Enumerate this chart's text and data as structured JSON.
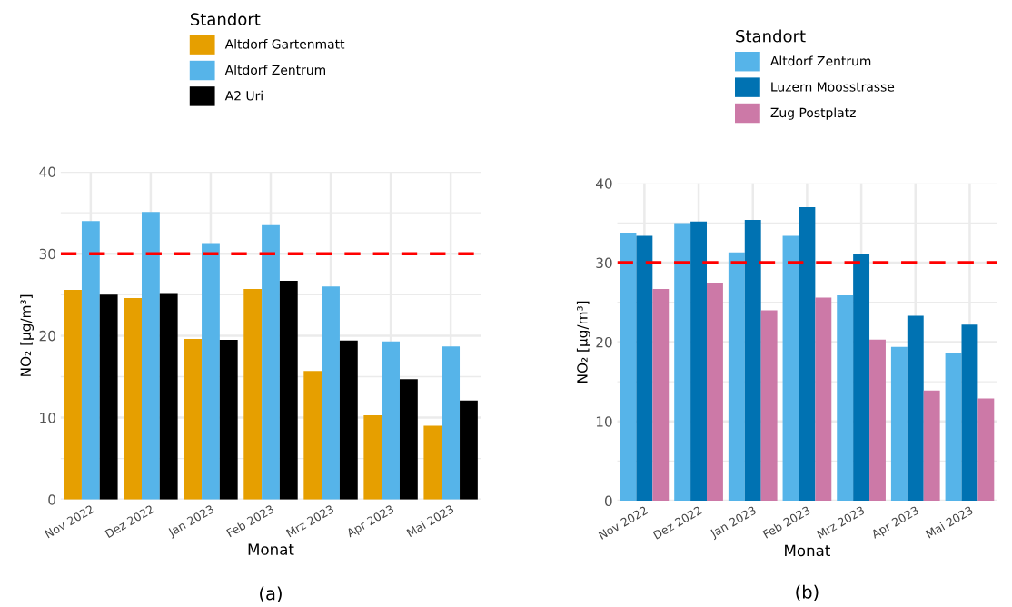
{
  "chart_data": [
    {
      "type": "bar",
      "xlabel": "Monat",
      "ylabel": "NO₂ [µg/m³]",
      "legend_title": "Standort",
      "legend": "top",
      "categories": [
        "Nov 2022",
        "Dez 2022",
        "Jan 2023",
        "Feb 2023",
        "Mrz 2023",
        "Apr 2023",
        "Mai 2023"
      ],
      "series": [
        {
          "name": "Altdorf Gartenmatt",
          "color": "#e69f00",
          "values": [
            25.6,
            24.6,
            19.6,
            25.7,
            15.7,
            10.3,
            9.0
          ]
        },
        {
          "name": "Altdorf Zentrum",
          "color": "#56b4e9",
          "values": [
            34.0,
            35.1,
            31.3,
            33.5,
            26.0,
            19.3,
            18.7
          ]
        },
        {
          "name": "A2 Uri",
          "color": "#000000",
          "values": [
            25.0,
            25.2,
            19.5,
            26.7,
            19.4,
            14.7,
            12.1
          ]
        }
      ],
      "ylim": [
        0,
        40
      ],
      "yticks": [
        0,
        10,
        20,
        30,
        40
      ],
      "grid": true,
      "ref_lines": [
        {
          "axis": "y",
          "value": 30,
          "color": "#ff0000",
          "line_style": "dashed"
        }
      ],
      "annotations": [
        "(a)"
      ]
    },
    {
      "type": "bar",
      "xlabel": "Monat",
      "ylabel": "NO₂ [µg/m³]",
      "legend_title": "Standort",
      "legend": "top",
      "categories": [
        "Nov 2022",
        "Dez 2022",
        "Jan 2023",
        "Feb 2023",
        "Mrz 2023",
        "Apr 2023",
        "Mai 2023"
      ],
      "series": [
        {
          "name": "Altdorf Zentrum",
          "color": "#56b4e9",
          "values": [
            33.8,
            35.0,
            31.3,
            33.4,
            25.9,
            19.4,
            18.6
          ]
        },
        {
          "name": "Luzern Moosstrasse",
          "color": "#0072b2",
          "values": [
            33.4,
            35.2,
            35.4,
            37.0,
            31.1,
            23.3,
            22.2
          ]
        },
        {
          "name": "Zug Postplatz",
          "color": "#cc79a7",
          "values": [
            26.7,
            27.5,
            24.0,
            25.6,
            20.3,
            13.9,
            12.9
          ]
        }
      ],
      "ylim": [
        0,
        40
      ],
      "yticks": [
        0,
        10,
        20,
        30,
        40
      ],
      "grid": true,
      "ref_lines": [
        {
          "axis": "y",
          "value": 30,
          "color": "#ff0000",
          "line_style": "dashed"
        }
      ],
      "annotations": [
        "(b)"
      ]
    }
  ]
}
